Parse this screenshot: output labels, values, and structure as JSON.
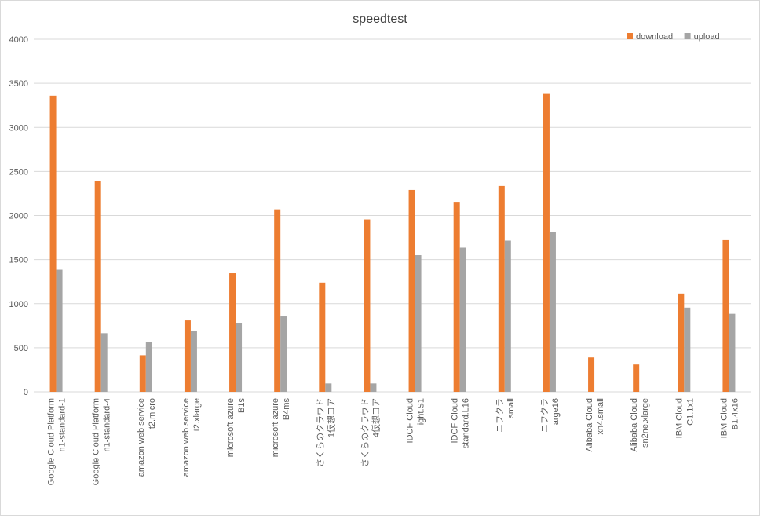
{
  "chart_data": {
    "type": "bar",
    "title": "speedtest",
    "xlabel": "",
    "ylabel": "",
    "ylim": [
      0,
      4000
    ],
    "yticks": [
      0,
      500,
      1000,
      1500,
      2000,
      2500,
      3000,
      3500,
      4000
    ],
    "grid": true,
    "legend_position": "top-right",
    "categories": [
      [
        "Google Cloud Platform",
        "n1-standard-1"
      ],
      [
        "Google Cloud Platform",
        "n1-standard-4"
      ],
      [
        "amazon web service",
        "t2.micro"
      ],
      [
        "amazon web service",
        "t2.xlarge"
      ],
      [
        "microsoft azure",
        "B1s"
      ],
      [
        "microsoft azure",
        "B4ms"
      ],
      [
        "さくらのクラウド",
        "1仮想コア"
      ],
      [
        "さくらのクラウド",
        "4仮想コア"
      ],
      [
        "IDCF Cloud",
        "light.S1"
      ],
      [
        "IDCF Cloud",
        "standard.L16"
      ],
      [
        "ニフクラ",
        "small"
      ],
      [
        "ニフクラ",
        "large16"
      ],
      [
        "Alibaba Cloud",
        "xn4.small"
      ],
      [
        "Alibaba Cloud",
        "sn2ne.xlarge"
      ],
      [
        "IBM Cloud",
        "C1.1x1"
      ],
      [
        "IBM Cloud",
        "B1.4x16"
      ]
    ],
    "series": [
      {
        "name": "download",
        "color": "#ED7D31",
        "values": [
          3360,
          2390,
          415,
          810,
          1345,
          2070,
          1240,
          1955,
          2290,
          2155,
          2335,
          3380,
          390,
          310,
          1115,
          1720
        ]
      },
      {
        "name": "upload",
        "color": "#A5A5A5",
        "values": [
          1385,
          665,
          565,
          695,
          775,
          855,
          95,
          95,
          1550,
          1635,
          1715,
          1810,
          0,
          0,
          955,
          885
        ]
      }
    ]
  }
}
